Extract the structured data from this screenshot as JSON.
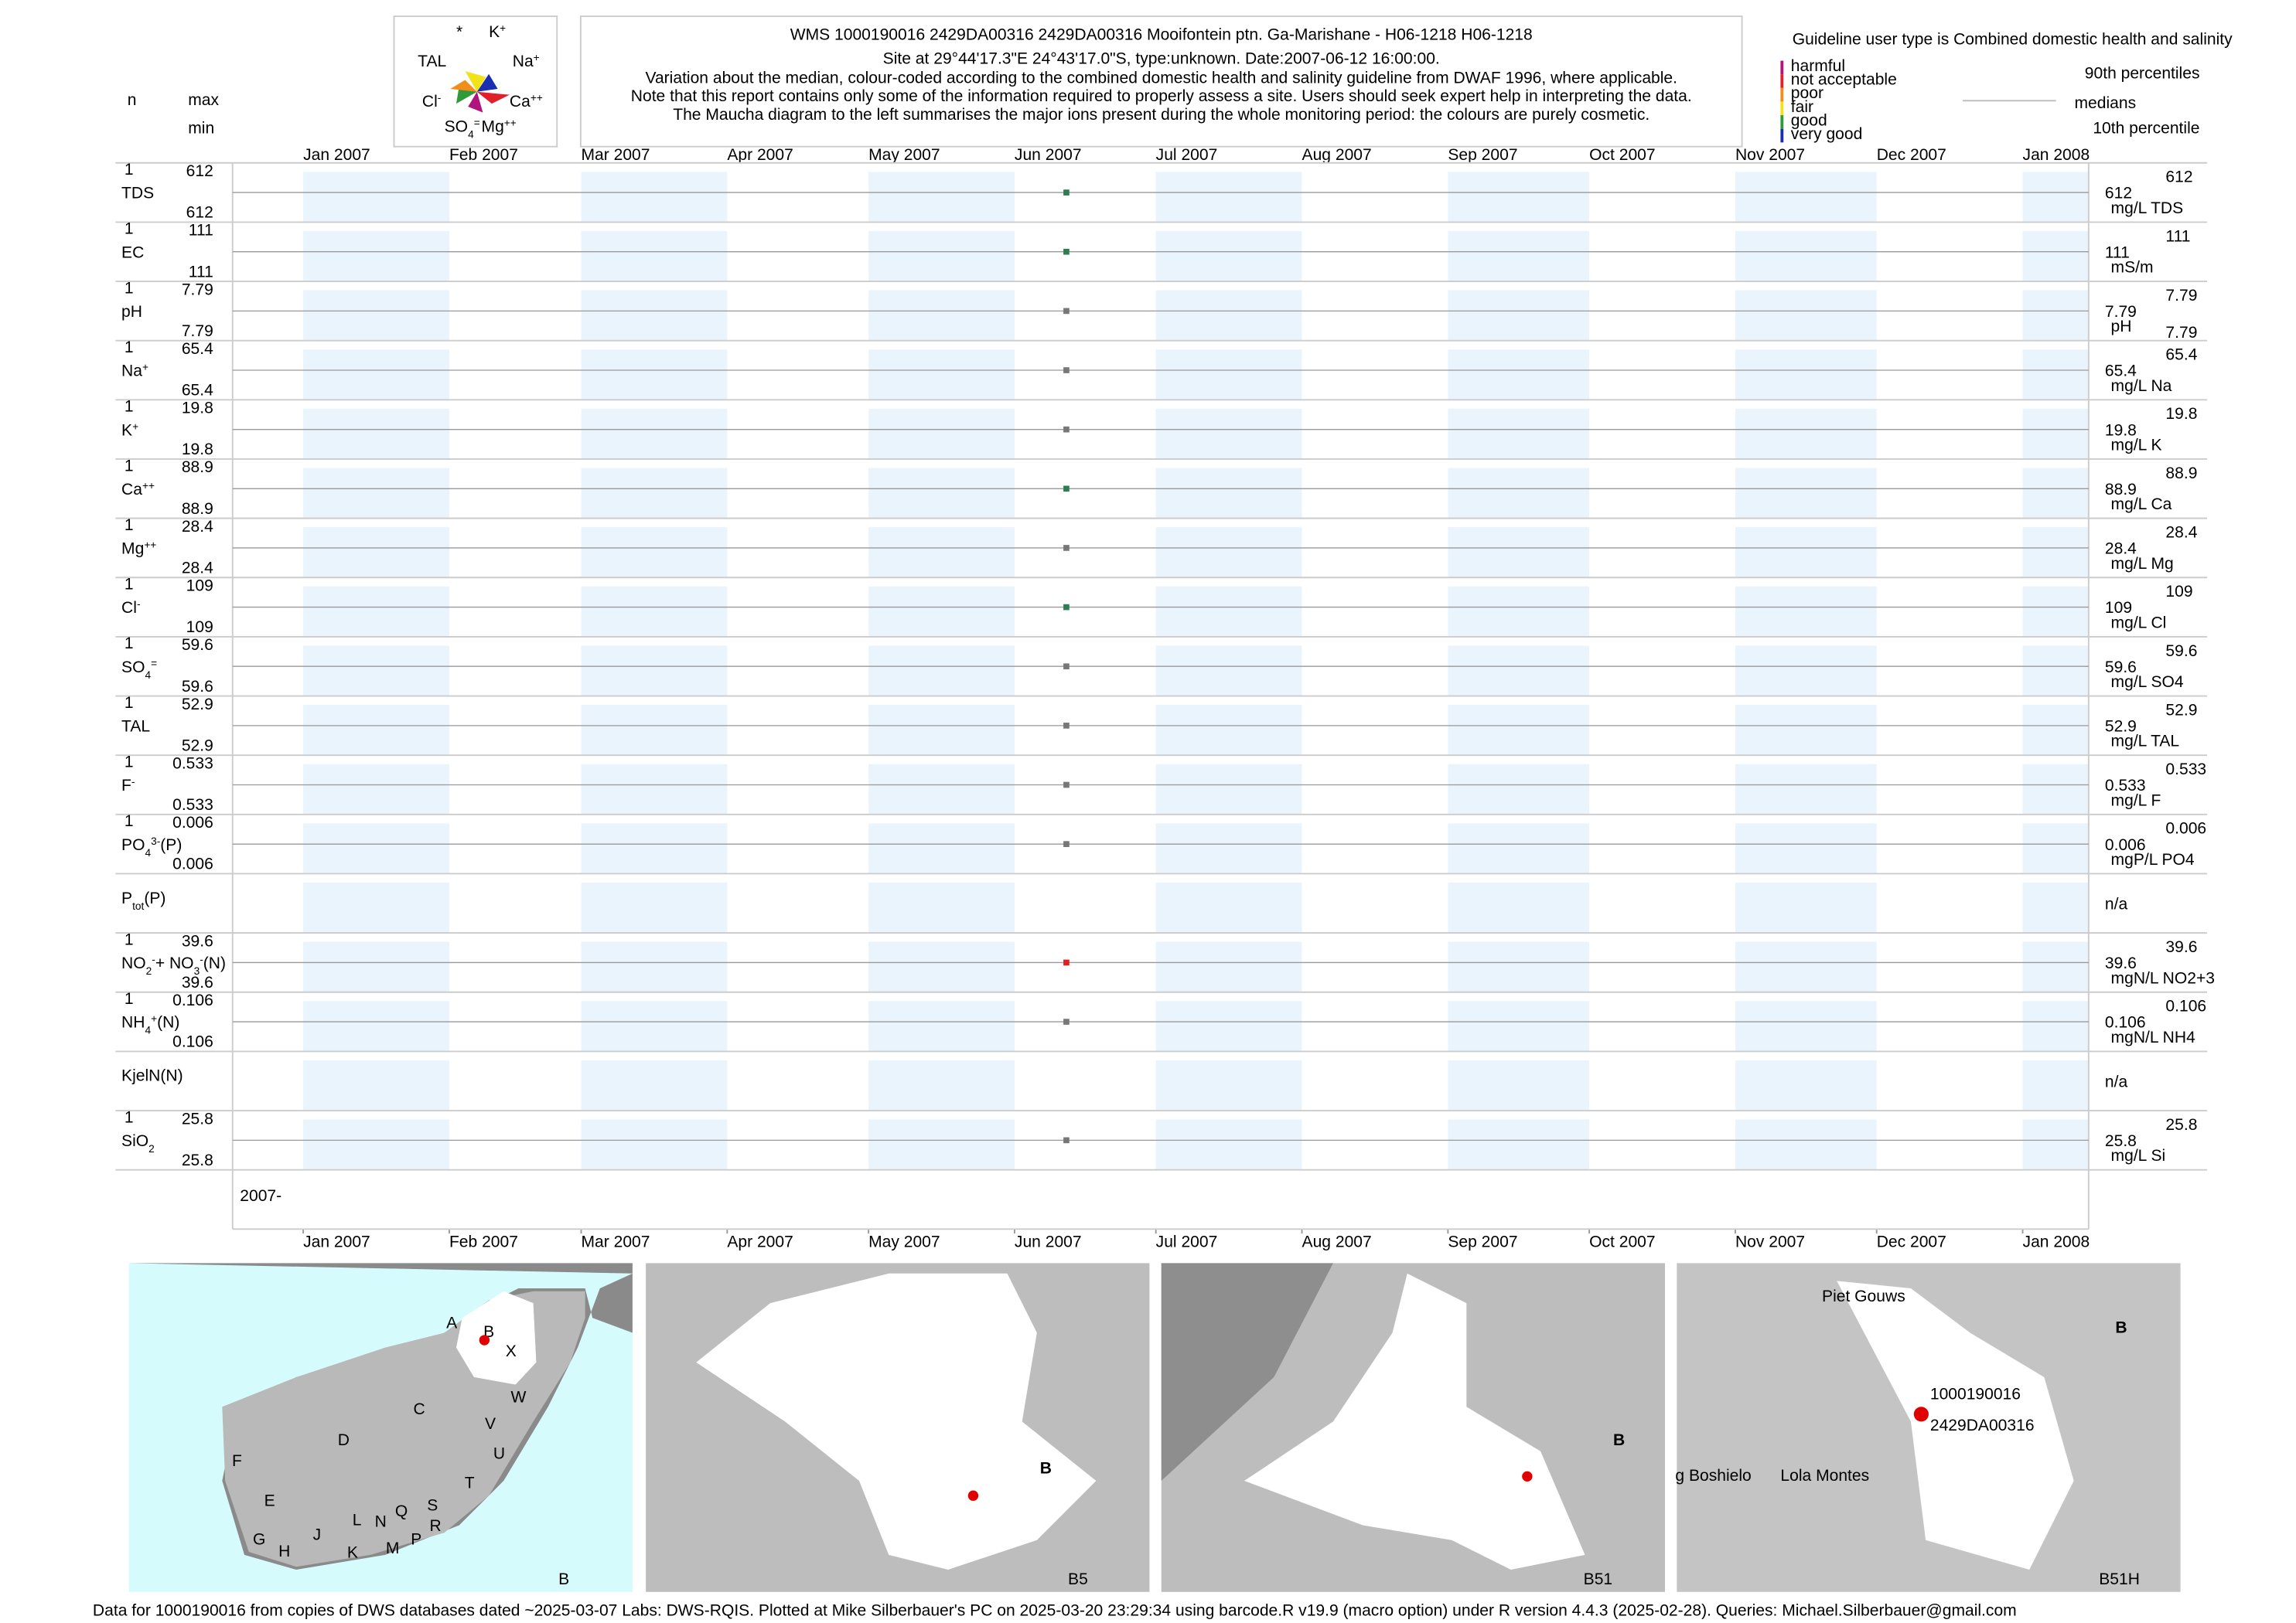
{
  "chart_data": {
    "type": "strip",
    "title": "WMS 1000190016 2429DA00316 2429DA00316 Mooifontein ptn. Ga-Marishane - H06-1218 H06-1218",
    "subtitle": "Site at 29°44'17.3\"E 24°43'17.0\"S, type:unknown. Date:2007-06-12 16:00:00.",
    "notes": [
      "Variation about the median,  colour-coded according to the combined domestic health and salinity guideline from DWAF 1996, where applicable.",
      "Note that this report contains only some of the information required to properly assess a site. Users should seek expert help in interpreting the data.",
      "The Maucha diagram to the left summarises the major ions present during the whole monitoring period: the colours are purely cosmetic."
    ],
    "column_labels": {
      "n": "n",
      "max": "max",
      "min": "min"
    },
    "xlim": [
      "2006-12-17",
      "2008-01-15"
    ],
    "xticks": [
      {
        "value": "2007-01-01",
        "label": "Jan 2007"
      },
      {
        "value": "2007-02-01",
        "label": "Feb 2007"
      },
      {
        "value": "2007-03-01",
        "label": "Mar 2007"
      },
      {
        "value": "2007-04-01",
        "label": "Apr 2007"
      },
      {
        "value": "2007-05-01",
        "label": "May 2007"
      },
      {
        "value": "2007-06-01",
        "label": "Jun 2007"
      },
      {
        "value": "2007-07-01",
        "label": "Jul 2007"
      },
      {
        "value": "2007-08-01",
        "label": "Aug 2007"
      },
      {
        "value": "2007-09-01",
        "label": "Sep 2007"
      },
      {
        "value": "2007-10-01",
        "label": "Oct 2007"
      },
      {
        "value": "2007-11-01",
        "label": "Nov 2007"
      },
      {
        "value": "2007-12-01",
        "label": "Dec 2007"
      },
      {
        "value": "2008-01-01",
        "label": "Jan 2008"
      }
    ],
    "start_label": "2007-",
    "rows": [
      {
        "label_parts": [
          {
            "text": "TDS"
          }
        ],
        "n": 1,
        "max": 612,
        "min": 612,
        "median": 612,
        "unit": "mg/L TDS",
        "p90": 612,
        "date": "2007-06-12",
        "color": "#2e7d4f"
      },
      {
        "label_parts": [
          {
            "text": "EC"
          }
        ],
        "n": 1,
        "max": 111,
        "min": 111,
        "median": 111,
        "unit": "mS/m",
        "p90": 111,
        "date": "2007-06-12",
        "color": "#2e7d4f"
      },
      {
        "label_parts": [
          {
            "text": "pH"
          }
        ],
        "n": 1,
        "max": 7.79,
        "min": 7.79,
        "median": 7.79,
        "unit": "pH",
        "p90": 7.79,
        "p10": 7.79,
        "date": "2007-06-12",
        "color": "#777777"
      },
      {
        "label_parts": [
          {
            "text": "Na"
          },
          {
            "text": "+",
            "shift": "super"
          }
        ],
        "n": 1,
        "max": 65.4,
        "min": 65.4,
        "median": 65.4,
        "unit": "mg/L Na",
        "p90": 65.4,
        "date": "2007-06-12",
        "color": "#777777"
      },
      {
        "label_parts": [
          {
            "text": "K"
          },
          {
            "text": "+",
            "shift": "super"
          }
        ],
        "n": 1,
        "max": 19.8,
        "min": 19.8,
        "median": 19.8,
        "unit": "mg/L K",
        "p90": 19.8,
        "date": "2007-06-12",
        "color": "#777777"
      },
      {
        "label_parts": [
          {
            "text": "Ca"
          },
          {
            "text": "++",
            "shift": "super"
          }
        ],
        "n": 1,
        "max": 88.9,
        "min": 88.9,
        "median": 88.9,
        "unit": "mg/L Ca",
        "p90": 88.9,
        "date": "2007-06-12",
        "color": "#2e7d4f"
      },
      {
        "label_parts": [
          {
            "text": "Mg"
          },
          {
            "text": "++",
            "shift": "super"
          }
        ],
        "n": 1,
        "max": 28.4,
        "min": 28.4,
        "median": 28.4,
        "unit": "mg/L Mg",
        "p90": 28.4,
        "date": "2007-06-12",
        "color": "#777777"
      },
      {
        "label_parts": [
          {
            "text": "Cl"
          },
          {
            "text": "-",
            "shift": "super"
          }
        ],
        "n": 1,
        "max": 109,
        "min": 109,
        "median": 109,
        "unit": "mg/L Cl",
        "p90": 109,
        "date": "2007-06-12",
        "color": "#2e7d4f"
      },
      {
        "label_parts": [
          {
            "text": "SO"
          },
          {
            "text": "4",
            "shift": "sub"
          },
          {
            "text": "=",
            "shift": "super"
          }
        ],
        "n": 1,
        "max": 59.6,
        "min": 59.6,
        "median": 59.6,
        "unit": "mg/L SO4",
        "p90": 59.6,
        "date": "2007-06-12",
        "color": "#777777"
      },
      {
        "label_parts": [
          {
            "text": "TAL"
          }
        ],
        "n": 1,
        "max": 52.9,
        "min": 52.9,
        "median": 52.9,
        "unit": "mg/L TAL",
        "p90": 52.9,
        "date": "2007-06-12",
        "color": "#777777"
      },
      {
        "label_parts": [
          {
            "text": "F"
          },
          {
            "text": "-",
            "shift": "super"
          }
        ],
        "n": 1,
        "max": 0.533,
        "min": 0.533,
        "median": 0.533,
        "unit": "mg/L F",
        "p90": 0.533,
        "date": "2007-06-12",
        "color": "#777777"
      },
      {
        "label_parts": [
          {
            "text": "PO"
          },
          {
            "text": "4",
            "shift": "sub"
          },
          {
            "text": "3-",
            "shift": "super"
          },
          {
            "text": "(P)"
          }
        ],
        "n": 1,
        "max": 0.006,
        "min": 0.006,
        "median": 0.006,
        "unit": "mgP/L PO4",
        "p90": 0.006,
        "date": "2007-06-12",
        "color": "#777777"
      },
      {
        "label_parts": [
          {
            "text": "P"
          },
          {
            "text": "tot",
            "shift": "sub"
          },
          {
            "text": "(P)"
          }
        ],
        "na_text": "n/a"
      },
      {
        "label_parts": [
          {
            "text": "NO"
          },
          {
            "text": "2",
            "shift": "sub"
          },
          {
            "text": "-",
            "shift": "super"
          },
          {
            "text": "+ NO"
          },
          {
            "text": "3",
            "shift": "sub"
          },
          {
            "text": "-",
            "shift": "super"
          },
          {
            "text": "(N)"
          }
        ],
        "n": 1,
        "max": 39.6,
        "min": 39.6,
        "median": 39.6,
        "unit": "mgN/L NO2+3",
        "p90": 39.6,
        "date": "2007-06-12",
        "color": "#e02020"
      },
      {
        "label_parts": [
          {
            "text": "NH"
          },
          {
            "text": "4",
            "shift": "sub"
          },
          {
            "text": "+",
            "shift": "super"
          },
          {
            "text": "(N)"
          }
        ],
        "n": 1,
        "max": 0.106,
        "min": 0.106,
        "median": 0.106,
        "unit": "mgN/L NH4",
        "p90": 0.106,
        "date": "2007-06-12",
        "color": "#777777"
      },
      {
        "label_parts": [
          {
            "text": "KjelN(N)"
          }
        ],
        "na_text": "n/a"
      },
      {
        "label_parts": [
          {
            "text": "SiO"
          },
          {
            "text": "2",
            "shift": "sub"
          }
        ],
        "n": 1,
        "max": 25.8,
        "min": 25.8,
        "median": 25.8,
        "unit": "mg/L Si",
        "p90": 25.8,
        "date": "2007-06-12",
        "color": "#777777"
      }
    ]
  },
  "maucha": {
    "labels": [
      [
        {
          "text": "*"
        }
      ],
      [
        {
          "text": "K"
        },
        {
          "text": "+",
          "shift": "super"
        }
      ],
      [
        {
          "text": "TAL"
        }
      ],
      [
        {
          "text": "Na"
        },
        {
          "text": "+",
          "shift": "super"
        }
      ],
      [
        {
          "text": "Cl"
        },
        {
          "text": "-",
          "shift": "super"
        }
      ],
      [
        {
          "text": "Ca"
        },
        {
          "text": "++",
          "shift": "super"
        }
      ],
      [
        {
          "text": "SO"
        },
        {
          "text": "4",
          "shift": "sub"
        },
        {
          "text": "=",
          "shift": "super"
        }
      ],
      [
        {
          "text": "Mg"
        },
        {
          "text": "++",
          "shift": "super"
        }
      ]
    ]
  },
  "guideline": {
    "title": "Guideline user type is Combined domestic health and salinity",
    "levels": [
      {
        "label": "harmful",
        "color": "#b0127e"
      },
      {
        "label": "not acceptable",
        "color": "#e0202a"
      },
      {
        "label": "poor",
        "color": "#f28c1a"
      },
      {
        "label": "fair",
        "color": "#f2e21a"
      },
      {
        "label": "good",
        "color": "#2e9a3a"
      },
      {
        "label": "very good",
        "color": "#1a2eb0"
      }
    ],
    "p90_label": "90th percentiles",
    "median_label": "medians",
    "p10_label": "10th percentile"
  },
  "maps": [
    {
      "caption": "B",
      "labels": [
        "A",
        "B",
        "X",
        "C",
        "W",
        "D",
        "V",
        "U",
        "F",
        "T",
        "E",
        "S",
        "L",
        "N",
        "Q",
        "R",
        "J",
        "G",
        "H",
        "K",
        "M",
        "P"
      ]
    },
    {
      "caption": "B5",
      "labels": [
        "B"
      ]
    },
    {
      "caption": "B51",
      "labels": [
        "B"
      ]
    },
    {
      "caption": "B51H",
      "labels": [
        "B",
        "1000190016",
        "2429DA00316",
        "Piet Gouws",
        "g Boshielo",
        "Lola Montes"
      ]
    }
  ],
  "footer": "Data for 1000190016 from copies of DWS databases dated ~2025-03-07 Labs: DWS-RQIS. Plotted at Mike Silberbauer's PC on 2025-03-20 23:29:34 using barcode.R v19.9 (macro option) under R version 4.4.3 (2025-02-28). Queries: Michael.Silberbauer@gmail.com"
}
